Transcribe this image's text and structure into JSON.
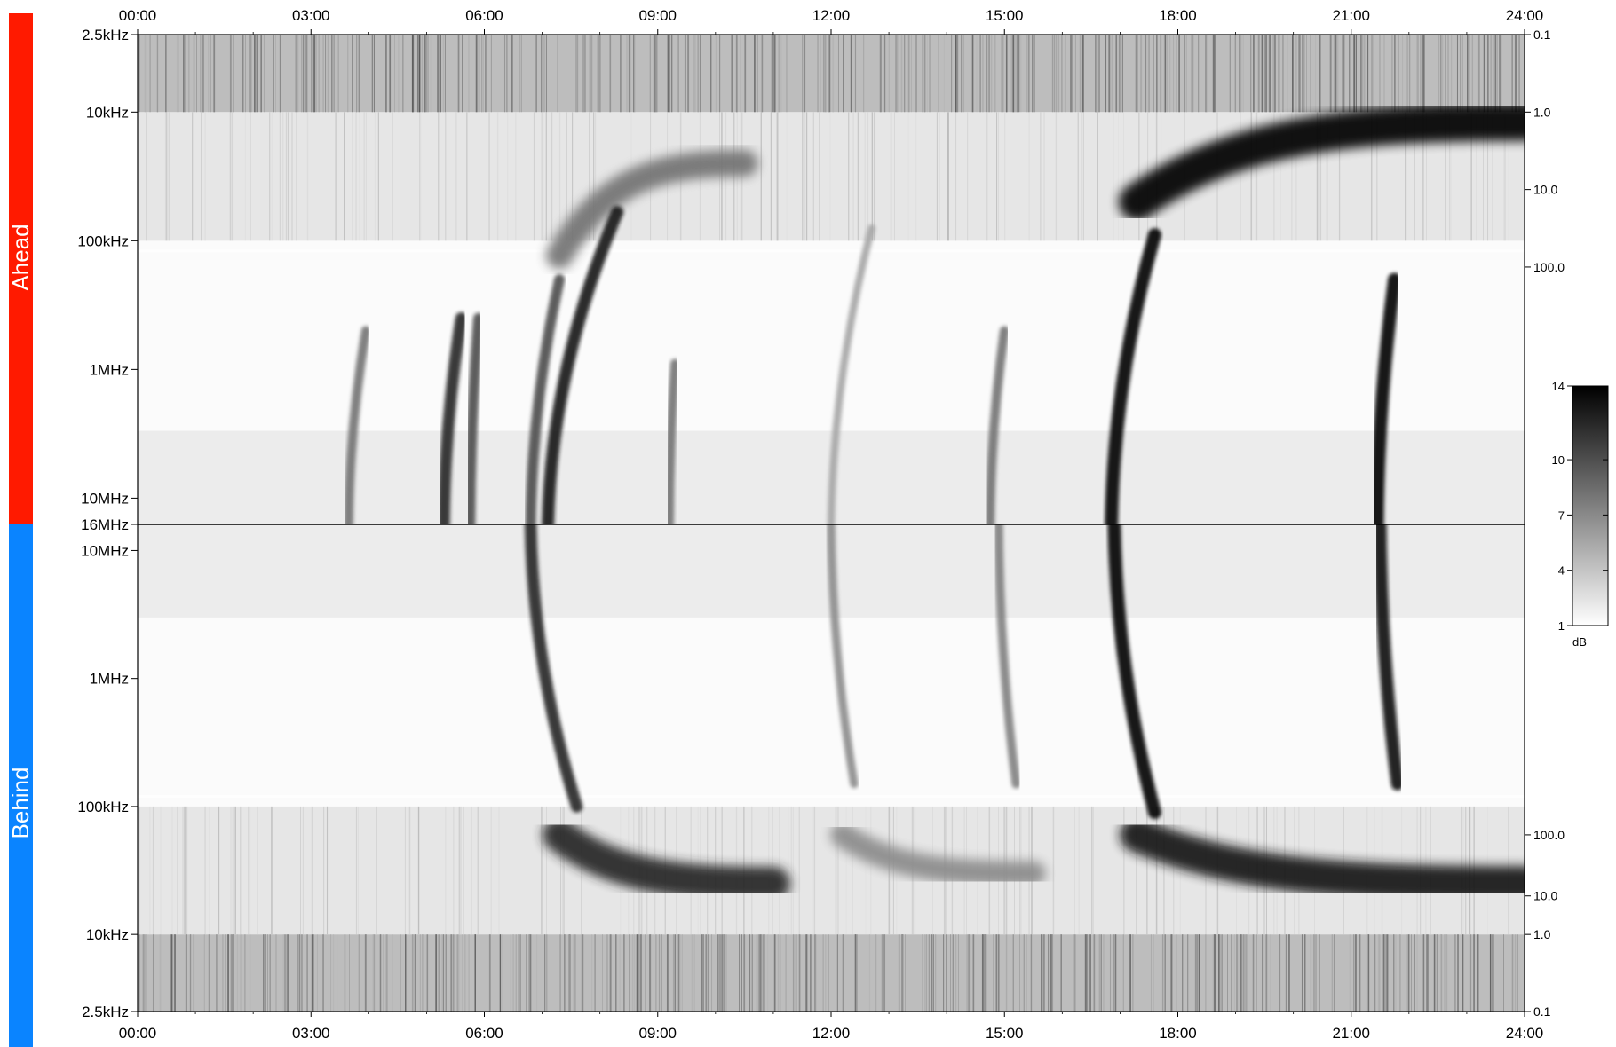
{
  "chart_data": {
    "type": "heatmap",
    "time_ticks": [
      "00:00",
      "03:00",
      "06:00",
      "09:00",
      "12:00",
      "15:00",
      "18:00",
      "21:00",
      "24:00"
    ],
    "x_range_hours": [
      0,
      24
    ],
    "grid": false,
    "panels": {
      "ahead": {
        "name": "Ahead",
        "color": "#ff1a00",
        "freq_labels": [
          "2.5kHz",
          "10kHz",
          "100kHz",
          "1MHz",
          "10MHz",
          "16MHz"
        ],
        "freq_values_hz": [
          2500,
          10000,
          100000,
          1000000,
          10000000,
          16000000
        ],
        "right_axis_labels": [
          "0.1",
          "1.0",
          "10.0",
          "100.0"
        ],
        "right_axis_freq_hz": [
          2500,
          10000,
          40000,
          160000
        ]
      },
      "behind": {
        "name": "Behind",
        "color": "#0a84ff",
        "freq_labels": [
          "10MHz",
          "1MHz",
          "100kHz",
          "10kHz",
          "2.5kHz"
        ],
        "freq_values_hz": [
          10000000,
          1000000,
          100000,
          10000,
          2500
        ],
        "right_axis_labels": [
          "100.0",
          "10.0",
          "1.0",
          "0.1"
        ],
        "right_axis_freq_hz": [
          60000,
          20000,
          10000,
          2500
        ]
      }
    },
    "colorbar": {
      "unit": "dB",
      "ticks": [
        "14",
        "10",
        "7",
        "4",
        "1"
      ],
      "tick_values": [
        14,
        10,
        7,
        4,
        1
      ],
      "range": [
        1,
        14
      ],
      "colors": [
        "#ffffff",
        "#000000"
      ]
    },
    "bursts": [
      {
        "panel": "ahead",
        "t_low": 3.65,
        "t_high": 3.95,
        "f_top_hz": 500000,
        "strength": 0.55
      },
      {
        "panel": "ahead",
        "t_low": 5.3,
        "t_high": 5.6,
        "f_top_hz": 400000,
        "strength": 0.85
      },
      {
        "panel": "ahead",
        "t_low": 5.75,
        "t_high": 5.9,
        "f_top_hz": 400000,
        "strength": 0.7
      },
      {
        "panel": "ahead",
        "t_low": 6.8,
        "t_high": 7.3,
        "f_top_hz": 200000,
        "strength": 0.7
      },
      {
        "panel": "ahead",
        "t_low": 7.1,
        "t_high": 8.3,
        "f_top_hz": 60000,
        "strength": 0.9
      },
      {
        "panel": "ahead",
        "t_low": 9.2,
        "t_high": 9.3,
        "f_top_hz": 900000,
        "strength": 0.55
      },
      {
        "panel": "ahead",
        "t_low": 12.0,
        "t_high": 12.7,
        "f_top_hz": 80000,
        "strength": 0.35
      },
      {
        "panel": "ahead",
        "t_low": 14.75,
        "t_high": 15.0,
        "f_top_hz": 500000,
        "strength": 0.55
      },
      {
        "panel": "ahead",
        "t_low": 16.85,
        "t_high": 17.6,
        "f_top_hz": 90000,
        "strength": 1.0
      },
      {
        "panel": "ahead",
        "t_low": 21.45,
        "t_high": 21.75,
        "f_top_hz": 200000,
        "strength": 1.0
      },
      {
        "panel": "behind",
        "t_low": 6.8,
        "t_high": 7.6,
        "f_top_hz": 100000,
        "strength": 0.85
      },
      {
        "panel": "behind",
        "t_low": 12.0,
        "t_high": 12.4,
        "f_top_hz": 150000,
        "strength": 0.45
      },
      {
        "panel": "behind",
        "t_low": 14.9,
        "t_high": 15.2,
        "f_top_hz": 150000,
        "strength": 0.5
      },
      {
        "panel": "behind",
        "t_low": 16.9,
        "t_high": 17.6,
        "f_top_hz": 90000,
        "strength": 1.0
      },
      {
        "panel": "behind",
        "t_low": 21.5,
        "t_high": 21.8,
        "f_top_hz": 150000,
        "strength": 0.95
      }
    ],
    "drifting_bands": [
      {
        "panel": "ahead",
        "t_start": 7.3,
        "t_end": 10.5,
        "f_start_hz": 130000,
        "f_end_hz": 25000,
        "strength": 0.55
      },
      {
        "panel": "ahead",
        "t_start": 17.3,
        "t_end": 24.0,
        "f_start_hz": 50000,
        "f_end_hz": 12000,
        "strength": 1.0
      },
      {
        "panel": "behind",
        "t_start": 7.3,
        "t_end": 11.0,
        "f_start_hz": 60000,
        "f_end_hz": 25000,
        "strength": 0.85
      },
      {
        "panel": "behind",
        "t_start": 12.2,
        "t_end": 15.5,
        "f_start_hz": 60000,
        "f_end_hz": 30000,
        "strength": 0.45
      },
      {
        "panel": "behind",
        "t_start": 17.3,
        "t_end": 24.0,
        "f_start_hz": 60000,
        "f_end_hz": 25000,
        "strength": 0.9
      }
    ]
  }
}
